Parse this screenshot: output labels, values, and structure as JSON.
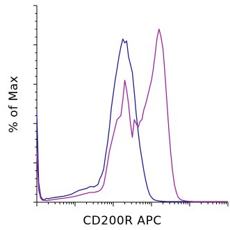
{
  "chart_data": {
    "type": "line",
    "title": "",
    "xlabel": "CD200R APC",
    "ylabel": "% of Max",
    "x_scale": "log",
    "xlim": [
      1,
      100000
    ],
    "ylim": [
      0,
      100
    ],
    "x_major_ticks": [
      1,
      10,
      100,
      1000,
      10000,
      100000
    ],
    "y_ticks": [
      0,
      20,
      40,
      60,
      80,
      100
    ],
    "grid": false,
    "legend": "none",
    "series": [
      {
        "color": "#1a1a9c",
        "x": [
          1,
          1.12,
          1.26,
          1.41,
          1.58,
          1.78,
          2.0,
          2.51,
          3.16,
          3.98,
          5.01,
          6.31,
          7.94,
          10.0,
          12.6,
          15.8,
          20.0,
          25.1,
          31.6,
          39.8,
          44.7,
          50.1,
          56.2,
          63.1,
          70.8,
          79.4,
          89.1,
          100,
          112,
          126,
          141,
          158,
          178,
          200,
          224,
          251,
          282,
          316,
          355,
          398,
          447,
          501,
          562,
          631,
          708,
          794,
          891,
          1000,
          1120,
          1260,
          1410,
          1580,
          1780,
          2000,
          2240,
          2510,
          2820,
          3160,
          3550,
          3980,
          5010,
          10000,
          100000
        ],
        "y": [
          45,
          10,
          3,
          1.5,
          1.2,
          2,
          1.8,
          2.2,
          2.5,
          2.8,
          3,
          3.5,
          4,
          5,
          6,
          6.5,
          7,
          8,
          7.8,
          9,
          12,
          14,
          17,
          24,
          30,
          38,
          48,
          55,
          62,
          68,
          74,
          79,
          83,
          81,
          82,
          74,
          70,
          66,
          56,
          45,
          36,
          28,
          22,
          16,
          11,
          7,
          4,
          2.5,
          1.5,
          1,
          0.8,
          0.6,
          0.5,
          0.4,
          0.4,
          0.3,
          0.3,
          0.3,
          0.3,
          0.3,
          0.3,
          0.3,
          0.3
        ]
      },
      {
        "color": "#a0209c",
        "x": [
          1,
          1.12,
          1.26,
          1.41,
          1.58,
          1.78,
          2.0,
          2.51,
          3.16,
          3.98,
          5.01,
          6.31,
          7.94,
          10.0,
          12.6,
          15.8,
          20.0,
          25.1,
          31.6,
          39.8,
          44.7,
          50.1,
          56.2,
          63.1,
          70.8,
          79.4,
          89.1,
          100,
          112,
          126,
          141,
          158,
          178,
          200,
          224,
          251,
          282,
          316,
          355,
          398,
          447,
          501,
          562,
          631,
          708,
          794,
          891,
          1000,
          1120,
          1260,
          1410,
          1580,
          1780,
          2000,
          2240,
          2510,
          2820,
          3160,
          3550,
          3980,
          4470,
          5010,
          5620,
          6310,
          7080,
          7940,
          8910,
          10000,
          11200,
          12600,
          14100,
          15800,
          20000,
          100000
        ],
        "y": [
          25,
          6,
          2,
          1,
          1,
          0.8,
          1,
          1.2,
          1.5,
          1.8,
          2,
          2.3,
          2.6,
          3,
          3.5,
          4,
          4.5,
          5,
          5,
          5.5,
          6,
          7,
          9,
          14,
          20,
          26,
          30,
          34,
          38,
          42,
          43,
          44,
          52,
          62,
          57,
          50,
          40,
          33,
          42,
          40,
          38,
          41,
          42,
          47,
          50,
          54,
          58,
          62,
          68,
          76,
          84,
          88,
          84,
          78,
          66,
          52,
          38,
          26,
          16,
          9,
          5,
          2.5,
          1.5,
          1,
          0.8,
          0.6,
          0.5,
          0.4,
          0.4,
          0.3,
          0.3,
          0.3,
          0.3,
          0.3
        ]
      }
    ]
  }
}
